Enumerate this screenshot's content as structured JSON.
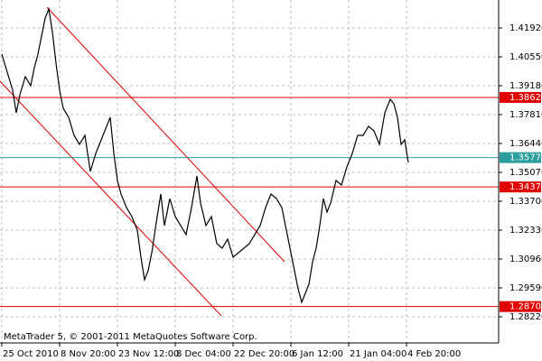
{
  "chart_data": {
    "type": "line",
    "annotation": "MetaTrader 5, © 2001-2011 MetaQuotes Software Corp.",
    "x": [
      0,
      6,
      12,
      16,
      20,
      26,
      32,
      36,
      40,
      44,
      48,
      52,
      56,
      60,
      64,
      68,
      74,
      80,
      86,
      92,
      98,
      104,
      110,
      116,
      120,
      124,
      128,
      132,
      138,
      144,
      150,
      154,
      158,
      162,
      166,
      172,
      176,
      180,
      186,
      192,
      198,
      204,
      210,
      216,
      220,
      226,
      232,
      238,
      244,
      250,
      256,
      262,
      268,
      274,
      280,
      286,
      292,
      298,
      304,
      310,
      316,
      322,
      328,
      332,
      336,
      340,
      344,
      348,
      352,
      356,
      360,
      364,
      370,
      376,
      382,
      388,
      394,
      400,
      406,
      412,
      418,
      424,
      430,
      434,
      438,
      442,
      446,
      450
    ],
    "series": [
      {
        "color": "#000000",
        "values": [
          1.40679,
          1.39822,
          1.38966,
          1.37896,
          1.38752,
          1.39608,
          1.3918,
          1.40036,
          1.40679,
          1.41535,
          1.42391,
          1.42819,
          1.41749,
          1.4025,
          1.38966,
          1.3811,
          1.37682,
          1.36826,
          1.36398,
          1.36826,
          1.35113,
          1.3597,
          1.36612,
          1.37254,
          1.37682,
          1.3597,
          1.34685,
          1.34043,
          1.33401,
          1.32973,
          1.32331,
          1.31047,
          1.29977,
          1.30405,
          1.31261,
          1.32973,
          1.34043,
          1.32545,
          1.33829,
          1.32973,
          1.32545,
          1.32117,
          1.33401,
          1.34899,
          1.33615,
          1.32545,
          1.32973,
          1.31689,
          1.31475,
          1.31903,
          1.31047,
          1.31261,
          1.31475,
          1.31689,
          1.32117,
          1.32545,
          1.33401,
          1.34043,
          1.33829,
          1.33401,
          1.32117,
          1.30833,
          1.29548,
          1.28906,
          1.29334,
          1.29762,
          1.30833,
          1.31475,
          1.32545,
          1.33829,
          1.33187,
          1.33615,
          1.34685,
          1.34471,
          1.35328,
          1.3597,
          1.36826,
          1.36826,
          1.37254,
          1.3704,
          1.36398,
          1.37896,
          1.38538,
          1.38324,
          1.37682,
          1.36398,
          1.36612,
          1.35542
        ]
      }
    ],
    "trendlines": [
      {
        "color": "#e00000",
        "x": [
          50,
          313
        ],
        "y": [
          1.42905,
          1.30833
        ]
      },
      {
        "color": "#e00000",
        "x": [
          -2,
          243
        ],
        "y": [
          1.39394,
          1.28263
        ]
      }
    ],
    "levels": [
      {
        "value": 1.38626,
        "color": "#e00000"
      },
      {
        "value": 1.35771,
        "color": "#2a9d9d"
      },
      {
        "value": 1.34378,
        "color": "#e00000"
      },
      {
        "value": 1.28705,
        "color": "#e00000"
      }
    ],
    "xlim": [
      0,
      550
    ],
    "xticks": [
      {
        "value": 0,
        "label": "25 Oct 2010"
      },
      {
        "value": 64,
        "label": "8 Nov 20:00"
      },
      {
        "value": 128,
        "label": "23 Nov 12:00"
      },
      {
        "value": 192,
        "label": "8 Dec 04:00"
      },
      {
        "value": 256,
        "label": "22 Dec 20:00"
      },
      {
        "value": 320,
        "label": "6 Jan 12:00"
      },
      {
        "value": 384,
        "label": "21 Jan 04:00"
      },
      {
        "value": 448,
        "label": "4 Feb 20:00"
      }
    ],
    "ylim": [
      1.26979,
      1.43247
    ],
    "yticks": [
      {
        "value": 1.4192,
        "label": "1.41920"
      },
      {
        "value": 1.4055,
        "label": "1.40550"
      },
      {
        "value": 1.3918,
        "label": "1.39180"
      },
      {
        "value": 1.3781,
        "label": "1.37810"
      },
      {
        "value": 1.3644,
        "label": "1.36440"
      },
      {
        "value": 1.3507,
        "label": "1.35070"
      },
      {
        "value": 1.337,
        "label": "1.33700"
      },
      {
        "value": 1.3233,
        "label": "1.32330"
      },
      {
        "value": 1.3096,
        "label": "1.30960"
      },
      {
        "value": 1.2959,
        "label": "1.29590"
      },
      {
        "value": 1.2822,
        "label": "1.28220"
      }
    ],
    "grid": true
  }
}
